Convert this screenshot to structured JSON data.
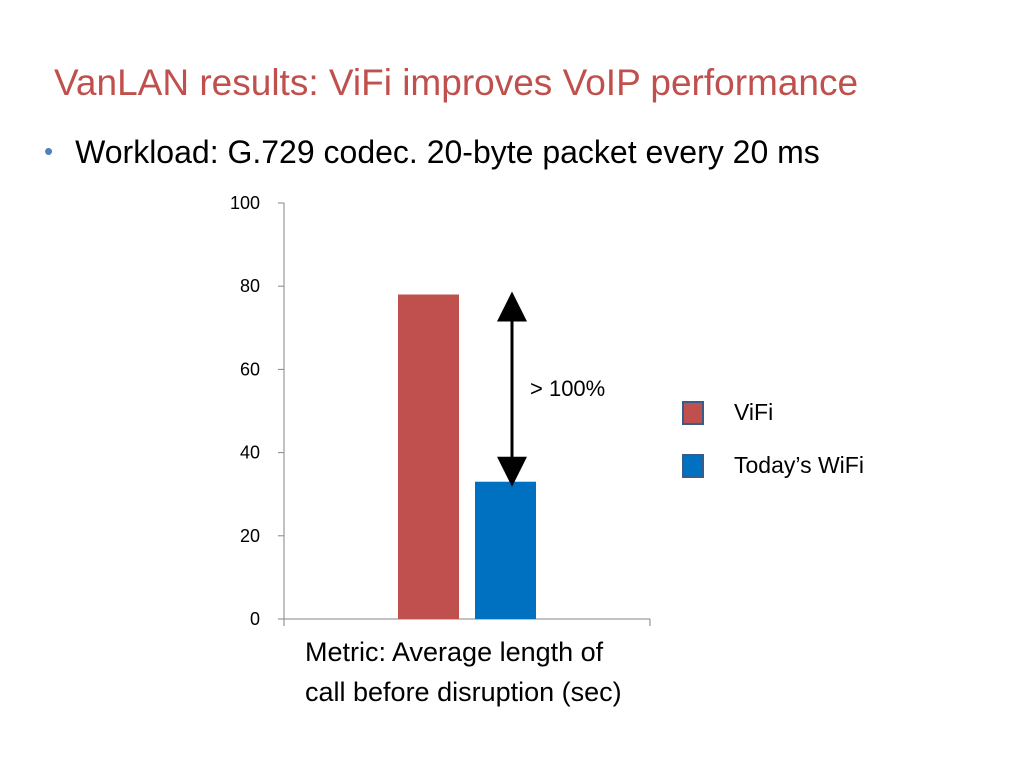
{
  "slide": {
    "title": "VanLAN results: ViFi improves VoIP performance",
    "bullet": "Workload: G.729 codec. 20-byte packet every 20 ms"
  },
  "chart_data": {
    "type": "bar",
    "categories": [
      ""
    ],
    "series": [
      {
        "name": "ViFi",
        "values": [
          78
        ],
        "color": "#c0504d"
      },
      {
        "name": "Today’s WiFi",
        "values": [
          33
        ],
        "color": "#0070c0"
      }
    ],
    "ylim": [
      0,
      100
    ],
    "yticks": [
      0,
      20,
      40,
      60,
      80,
      100
    ],
    "ytick_labels": [
      "0",
      "20",
      "40",
      "60",
      "80",
      "100"
    ],
    "grid": false,
    "legend_position": "right",
    "annotation": {
      "text": "> 100%",
      "from": 33,
      "to": 78
    }
  },
  "metric_caption": {
    "line1": "Metric: Average length of",
    "line2": "call before disruption (sec)"
  }
}
